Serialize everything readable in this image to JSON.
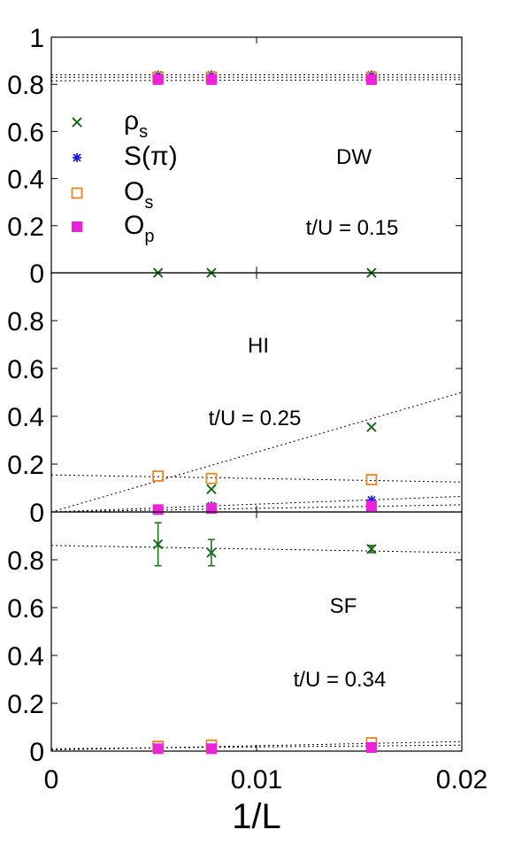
{
  "chart_data": {
    "type": "scatter",
    "xlabel": "1/L",
    "xlim": [
      0,
      0.02
    ],
    "x_ticks": [
      "0",
      "0.01",
      "0.02"
    ],
    "legend": {
      "placement": "top-left",
      "entries": [
        {
          "base": "ρ",
          "sub": "s",
          "marker": "x",
          "color": "#1a6b1a"
        },
        {
          "base": "S(π)",
          "sub": "",
          "marker": "star",
          "color": "#1a1aee"
        },
        {
          "base": "O",
          "sub": "s",
          "marker": "open-square",
          "color": "#e8861f"
        },
        {
          "base": "O",
          "sub": "p",
          "marker": "filled-square",
          "color": "#ee22dd"
        }
      ]
    },
    "panels": [
      {
        "label": "DW",
        "param": "t/U = 0.15",
        "ylim": [
          0,
          1
        ],
        "y_ticks": [
          "0",
          "0.2",
          "0.4",
          "0.6",
          "0.8",
          "1"
        ],
        "series": [
          {
            "key": "rho_s",
            "points": [
              [
                0.0052,
                0.0
              ],
              [
                0.0078,
                0.0
              ],
              [
                0.0156,
                0.0
              ]
            ]
          },
          {
            "key": "S_pi",
            "points": [
              [
                0.0052,
                0.84
              ],
              [
                0.0078,
                0.84
              ],
              [
                0.0156,
                0.84
              ]
            ]
          },
          {
            "key": "O_s",
            "points": [
              [
                0.0052,
                0.83
              ],
              [
                0.0078,
                0.83
              ],
              [
                0.0156,
                0.83
              ]
            ]
          },
          {
            "key": "O_p",
            "points": [
              [
                0.0052,
                0.82
              ],
              [
                0.0078,
                0.82
              ],
              [
                0.0156,
                0.82
              ]
            ]
          }
        ],
        "fits": [
          {
            "y0": 0.84,
            "y1": 0.84
          },
          {
            "y0": 0.83,
            "y1": 0.83
          },
          {
            "y0": 0.815,
            "y1": 0.82
          }
        ]
      },
      {
        "label": "HI",
        "param": "t/U = 0.25",
        "ylim": [
          0,
          1
        ],
        "y_ticks": [
          "0",
          "0.2",
          "0.4",
          "0.6",
          "0.8"
        ],
        "series": [
          {
            "key": "rho_s",
            "points": [
              [
                0.0052,
                0.01
              ],
              [
                0.0078,
                0.095
              ],
              [
                0.0156,
                0.355
              ]
            ]
          },
          {
            "key": "S_pi",
            "points": [
              [
                0.0052,
                0.01
              ],
              [
                0.0078,
                0.025
              ],
              [
                0.0156,
                0.05
              ]
            ]
          },
          {
            "key": "O_s",
            "points": [
              [
                0.0052,
                0.15
              ],
              [
                0.0078,
                0.14
              ],
              [
                0.0156,
                0.135
              ]
            ]
          },
          {
            "key": "O_p",
            "points": [
              [
                0.0052,
                0.01
              ],
              [
                0.0078,
                0.015
              ],
              [
                0.0156,
                0.025
              ]
            ]
          }
        ],
        "fits": [
          {
            "y0": 0.0,
            "y1": 0.5
          },
          {
            "y0": 0.155,
            "y1": 0.125
          },
          {
            "y0": 0.0,
            "y1": 0.065
          },
          {
            "y0": 0.0,
            "y1": 0.03
          }
        ]
      },
      {
        "label": "SF",
        "param": "t/U = 0.34",
        "ylim": [
          0,
          1
        ],
        "y_ticks": [
          "0",
          "0.2",
          "0.4",
          "0.6",
          "0.8"
        ],
        "series": [
          {
            "key": "rho_s",
            "points": [
              [
                0.0052,
                0.865
              ],
              [
                0.0078,
                0.83
              ],
              [
                0.0156,
                0.845
              ]
            ],
            "errors": [
              0.09,
              0.055,
              0.015
            ]
          },
          {
            "key": "S_pi",
            "points": [
              [
                0.0052,
                0.01
              ],
              [
                0.0078,
                0.01
              ],
              [
                0.0156,
                0.02
              ]
            ]
          },
          {
            "key": "O_s",
            "points": [
              [
                0.0052,
                0.02
              ],
              [
                0.0078,
                0.025
              ],
              [
                0.0156,
                0.035
              ]
            ]
          },
          {
            "key": "O_p",
            "points": [
              [
                0.0052,
                0.01
              ],
              [
                0.0078,
                0.01
              ],
              [
                0.0156,
                0.015
              ]
            ]
          }
        ],
        "fits": [
          {
            "y0": 0.86,
            "y1": 0.83
          },
          {
            "y0": 0.005,
            "y1": 0.04
          },
          {
            "y0": 0.01,
            "y1": 0.025
          }
        ]
      }
    ]
  }
}
